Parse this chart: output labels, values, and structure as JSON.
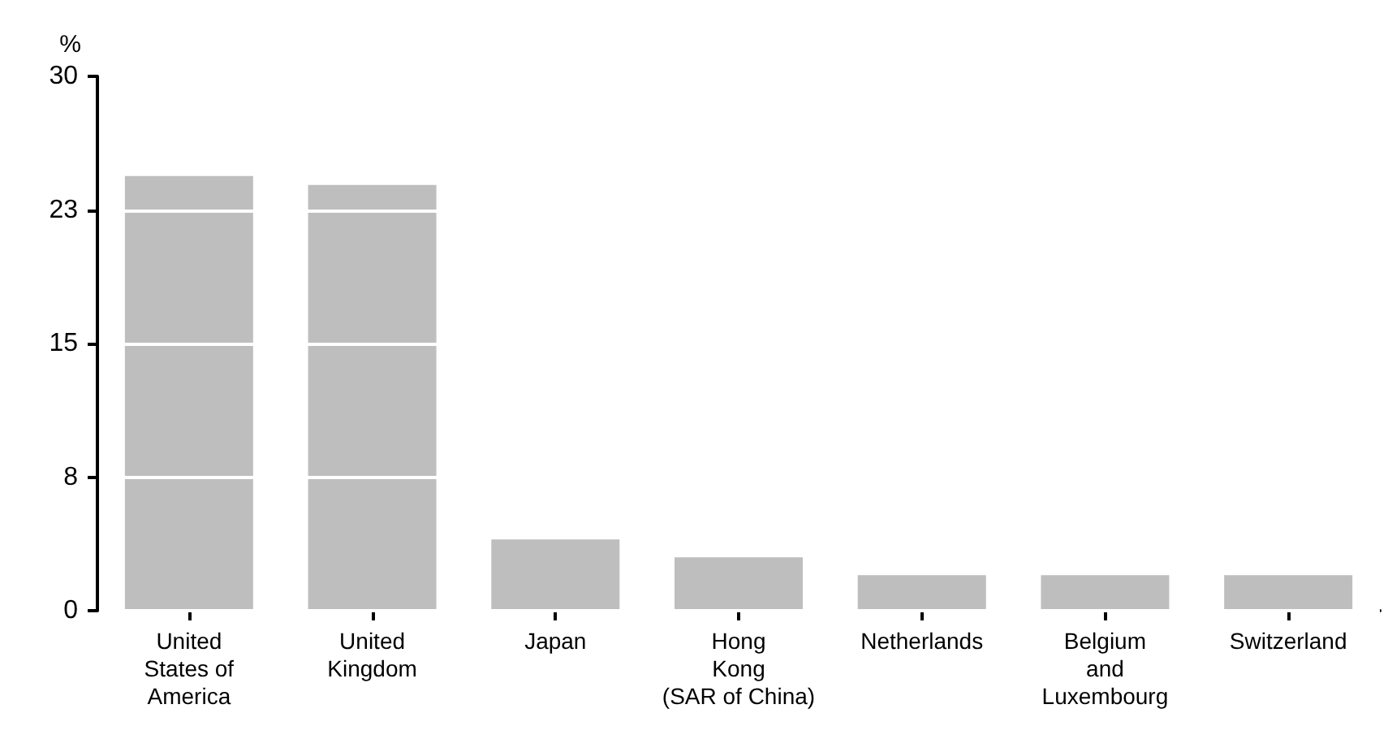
{
  "chart_data": {
    "type": "bar",
    "ylabel": "%",
    "categories": [
      "United\nStates of\nAmerica",
      "United\nKingdom",
      "Japan",
      "Hong\nKong\n(SAR of China)",
      "Netherlands",
      "Belgium\nand\nLuxembourg",
      "Switzerland"
    ],
    "values": [
      24.4,
      23.9,
      4.0,
      3.0,
      2.0,
      2.0,
      2.0
    ],
    "color": "#bebebe",
    "ylim": [
      0,
      30
    ],
    "yticks": [
      0,
      {
        "value": 7.5,
        "label": "8"
      },
      {
        "value": 15,
        "label": "15"
      },
      {
        "value": 22.5,
        "label": "23"
      },
      30
    ],
    "grid": "y"
  }
}
